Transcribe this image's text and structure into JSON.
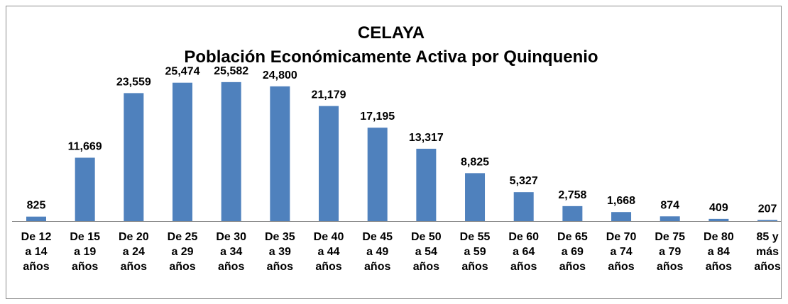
{
  "chart_data": {
    "type": "bar",
    "title": "CELAYA",
    "subtitle": "Población Económicamente Activa por Quinquenio",
    "categories": [
      [
        "De 12",
        "a 14",
        "años"
      ],
      [
        "De 15",
        "a 19",
        "años"
      ],
      [
        "De 20",
        "a 24",
        "años"
      ],
      [
        "De 25",
        "a 29",
        "años"
      ],
      [
        "De 30",
        "a 34",
        "años"
      ],
      [
        "De 35",
        "a 39",
        "años"
      ],
      [
        "De 40",
        "a 44",
        "años"
      ],
      [
        "De 45",
        "a 49",
        "años"
      ],
      [
        "De 50",
        "a 54",
        "años"
      ],
      [
        "De 55",
        "a 59",
        "años"
      ],
      [
        "De 60",
        "a 64",
        "años"
      ],
      [
        "De 65",
        "a 69",
        "años"
      ],
      [
        "De 70",
        "a 74",
        "años"
      ],
      [
        "De 75",
        "a 79",
        "años"
      ],
      [
        "De 80",
        "a 84",
        "años"
      ],
      [
        "85 y",
        "más",
        "años"
      ]
    ],
    "values": [
      825,
      11669,
      23559,
      25474,
      25582,
      24800,
      21179,
      17195,
      13317,
      8825,
      5327,
      2758,
      1668,
      874,
      409,
      207
    ],
    "value_labels": [
      "825",
      "11,669",
      "23,559",
      "25,474",
      "25,582",
      "24,800",
      "21,179",
      "17,195",
      "13,317",
      "8,825",
      "5,327",
      "2,758",
      "1,668",
      "874",
      "409",
      "207"
    ],
    "color": "#4f81bd",
    "ylim": [
      0,
      30000
    ],
    "grid": false
  }
}
